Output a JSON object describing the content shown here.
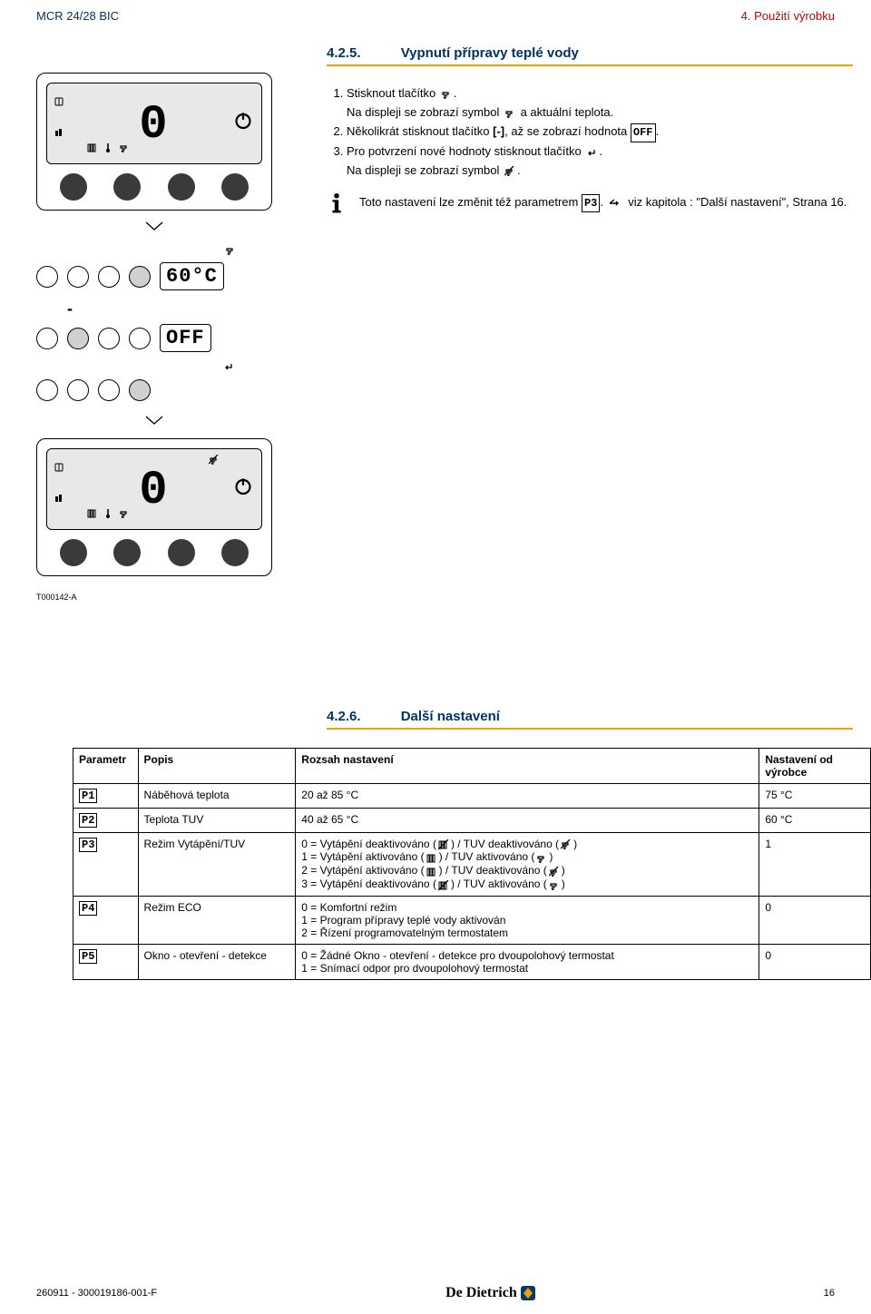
{
  "header": {
    "left": "MCR 24/28 BIC",
    "right": "4. Použití výrobku"
  },
  "section1": {
    "num": "4.2.5.",
    "title": "Vypnutí přípravy teplé vody",
    "steps": [
      "Stisknout tlačítko [+tap].\nNa displeji se zobrazí symbol [+tap] a aktuální teplota.",
      "Několikrát stisknout tlačítko [-], až se zobrazí hodnota [OFF].",
      "Pro potvrzení nové hodnoty stisknout tlačítko [↵].\nNa displeji se zobrazí symbol [tap-x]."
    ],
    "info": "Toto nastavení lze změnit též parametrem [P3]. ☞ viz kapitola : \"Další nastavení\", Strana 16."
  },
  "diagram": {
    "panel1_display": "0",
    "seq_values": [
      "60°C",
      "OFF"
    ],
    "panel2_display": "0",
    "ref": "T000142-A"
  },
  "section2": {
    "num": "4.2.6.",
    "title": "Další nastavení"
  },
  "table": {
    "columns": [
      "Parametr",
      "Popis",
      "Rozsah nastavení",
      "Nastavení od výrobce"
    ],
    "rows": [
      {
        "p": "P1",
        "desc": "Náběhová teplota",
        "range": [
          "20 až 85 °C"
        ],
        "def": "75 °C"
      },
      {
        "p": "P2",
        "desc": "Teplota TUV",
        "range": [
          "40 až 65 °C"
        ],
        "def": "60 °C"
      },
      {
        "p": "P3",
        "desc": "Režim Vytápění/TUV",
        "range": [
          "0 = Vytápění deaktivováno ([rad-x]) / TUV deaktivováno ([tap-x])",
          "1 = Vytápění aktivováno ([rad]) / TUV aktivováno ([tap])",
          "2 = Vytápění aktivováno ([rad]) / TUV deaktivováno ([tap-x])",
          "3 = Vytápění deaktivováno ([rad-x]) / TUV aktivováno ([tap])"
        ],
        "def": "1"
      },
      {
        "p": "P4",
        "desc": "Režim ECO",
        "range": [
          "0 = Komfortní režim",
          "1 = Program přípravy teplé vody aktivován",
          "2 = Řízení programovatelným termostatem"
        ],
        "def": "0"
      },
      {
        "p": "P5",
        "desc": "Okno - otevření - detekce",
        "range": [
          "0 = Žádné Okno - otevření - detekce pro dvoupolohový termostat",
          "1 = Snímací odpor pro dvoupolohový termostat"
        ],
        "def": "0"
      }
    ]
  },
  "footer": {
    "left": "260911 - 300019186-001-F",
    "brand": "De Dietrich",
    "page": "16"
  },
  "colors": {
    "blue": "#003366",
    "red": "#c00000",
    "orange": "#f0a000"
  }
}
